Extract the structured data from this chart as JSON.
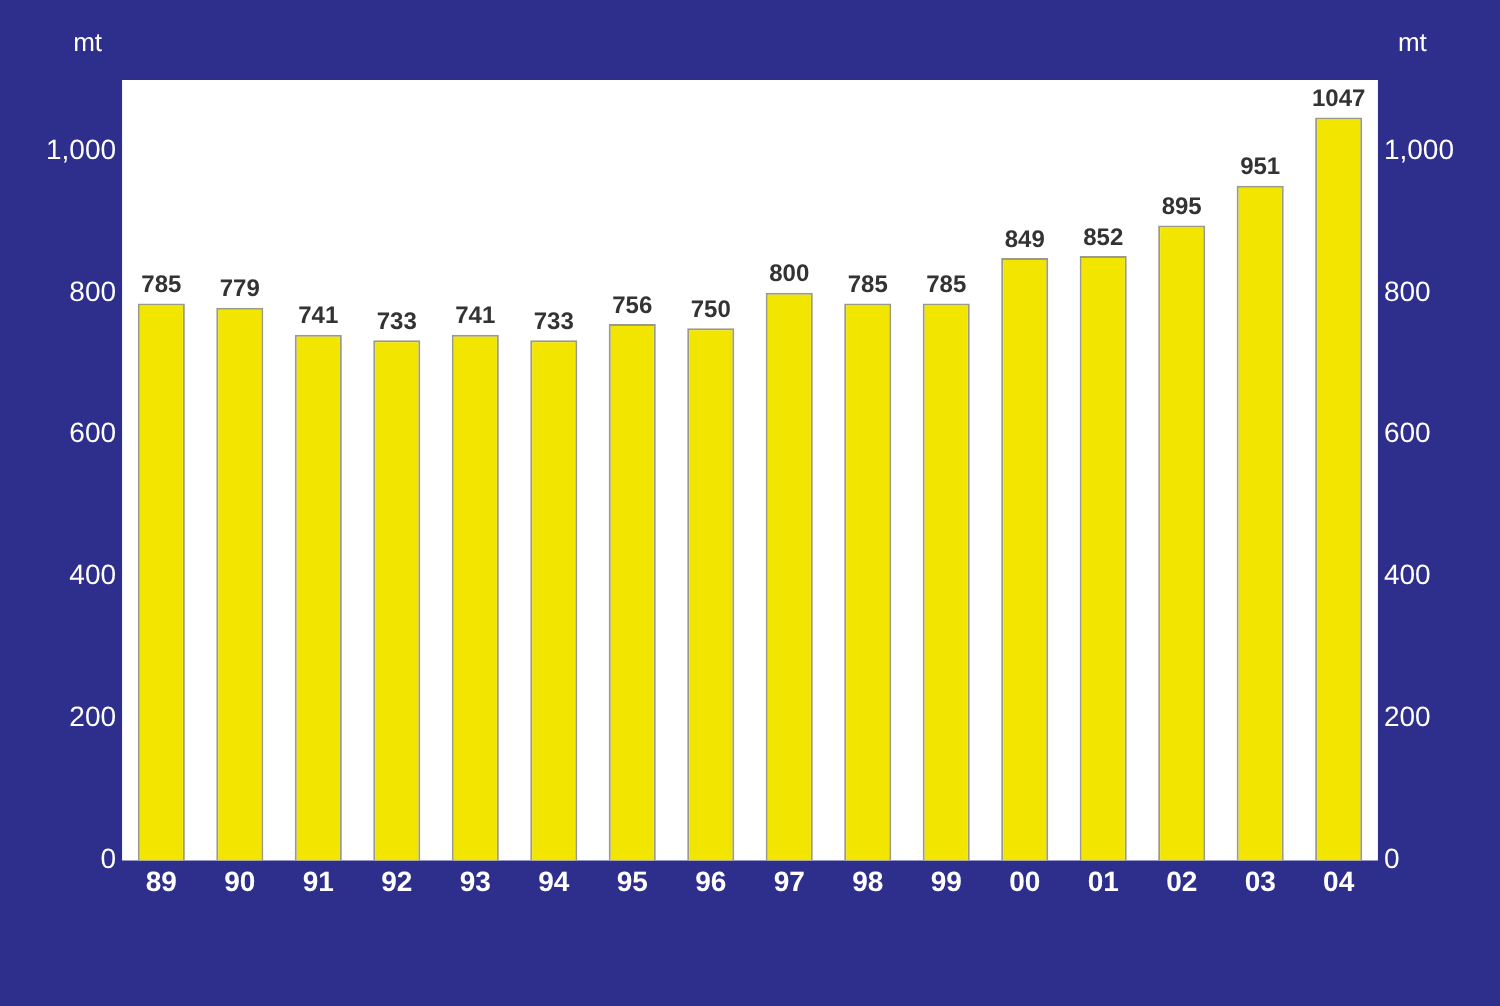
{
  "chart_data": {
    "type": "bar",
    "ylabel": "mt",
    "y2label": "mt",
    "categories": [
      "89",
      "90",
      "91",
      "92",
      "93",
      "94",
      "95",
      "96",
      "97",
      "98",
      "99",
      "00",
      "01",
      "02",
      "03",
      "04"
    ],
    "values": [
      785,
      779,
      741,
      733,
      741,
      733,
      756,
      750,
      800,
      785,
      785,
      849,
      852,
      895,
      951,
      1047
    ],
    "color": "#f2e600",
    "ylim": [
      0,
      1100
    ],
    "yticks": [
      0,
      200,
      400,
      600,
      800,
      {
        "value": 1000,
        "label": "1,000"
      }
    ],
    "y2lim": [
      0,
      1100
    ],
    "y2ticks": [
      0,
      200,
      400,
      600,
      800,
      {
        "value": 1000,
        "label": "1,000"
      }
    ],
    "grid": false,
    "legend": false,
    "data_labels": true
  }
}
